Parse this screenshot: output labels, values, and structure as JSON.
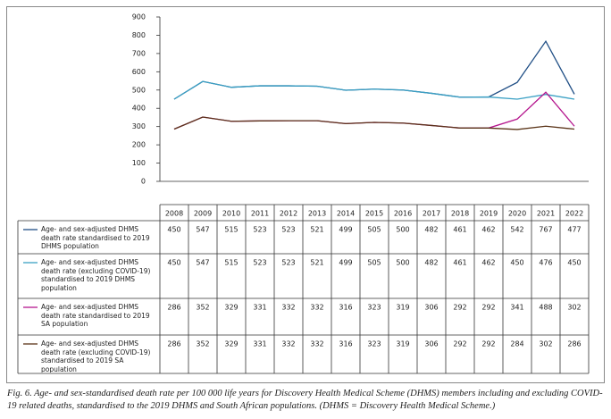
{
  "chart_data": {
    "type": "line",
    "categories": [
      "2008",
      "2009",
      "2010",
      "2011",
      "2012",
      "2013",
      "2014",
      "2015",
      "2016",
      "2017",
      "2018",
      "2019",
      "2020",
      "2021",
      "2022"
    ],
    "series": [
      {
        "name": "Age- and sex-adjusted DHMS death rate standardised to 2019 DHMS population",
        "color": "#1f4e85",
        "values": [
          450,
          547,
          515,
          523,
          523,
          521,
          499,
          505,
          500,
          482,
          461,
          462,
          542,
          767,
          477
        ]
      },
      {
        "name": "Age- and sex-adjusted DHMS death rate (excluding COVID-19) standardised to 2019 DHMS population",
        "color": "#3aa0c4",
        "values": [
          450,
          547,
          515,
          523,
          523,
          521,
          499,
          505,
          500,
          482,
          461,
          462,
          450,
          476,
          450
        ]
      },
      {
        "name": "Age- and sex-adjusted DHMS death rate standardised to 2019 SA population",
        "color": "#b5178e",
        "values": [
          286,
          352,
          329,
          331,
          332,
          332,
          316,
          323,
          319,
          306,
          292,
          292,
          341,
          488,
          302
        ]
      },
      {
        "name": "Age- and sex-adjusted DHMS death rate (excluding COVID-19) standardised to 2019 SA population",
        "color": "#5a3418",
        "values": [
          286,
          352,
          329,
          331,
          332,
          332,
          316,
          323,
          319,
          306,
          292,
          292,
          284,
          302,
          286
        ]
      }
    ],
    "ylim": [
      0,
      900
    ],
    "yticks": [
      0,
      100,
      200,
      300,
      400,
      500,
      600,
      700,
      800,
      900
    ],
    "caption": "Fig. 6. Age- and sex-standardised death rate per 100 000 life years for Discovery Health Medical Scheme (DHMS) members including and excluding COVID-19 related deaths, standardised to the 2019 DHMS and South African populations. (DHMS = Discovery Health Medical Scheme.)"
  }
}
